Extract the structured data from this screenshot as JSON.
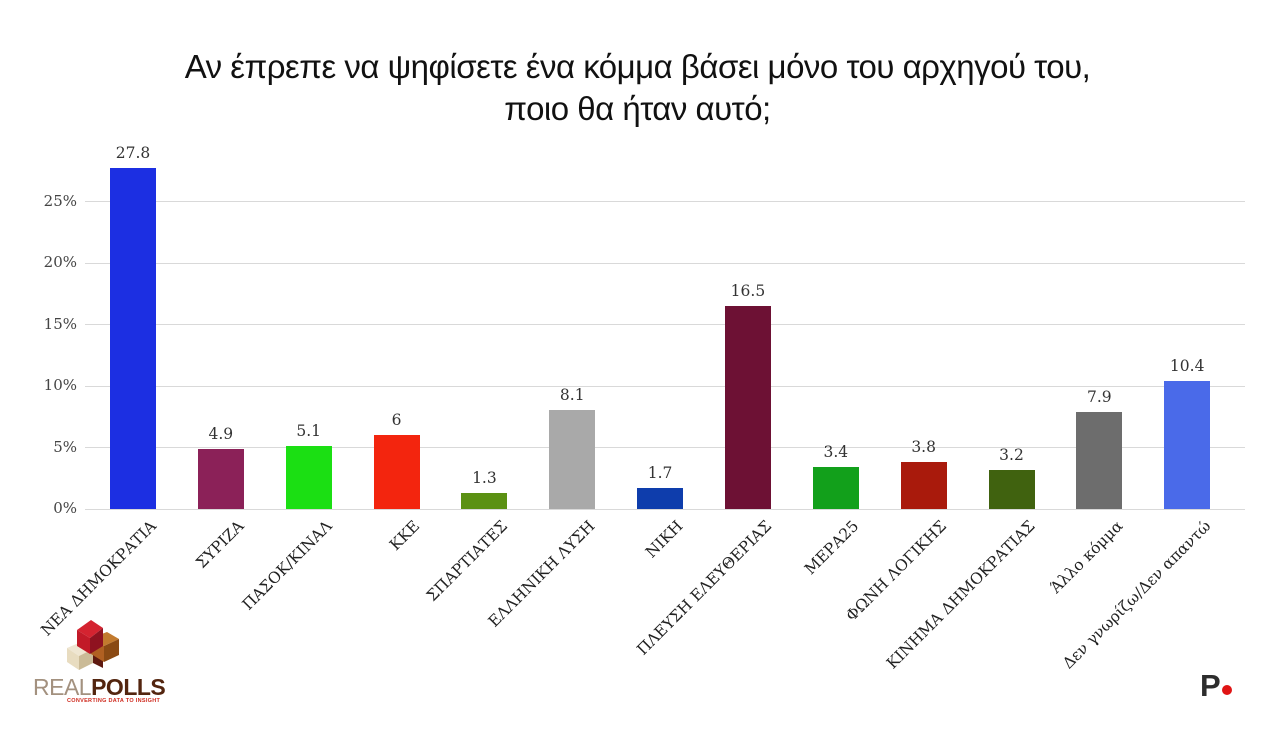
{
  "title": {
    "line1": "Αν έπρεπε να ψηφίσετε ένα κόμμα βάσει μόνο του αρχηγού του,",
    "line2": "ποιο θα ήταν αυτό;"
  },
  "chart_data": {
    "type": "bar",
    "title": "Αν έπρεπε να ψηφίσετε ένα κόμμα βάσει μόνο του αρχηγού του, ποιο θα ήταν αυτό;",
    "categories": [
      "ΝΕΑ ΔΗΜΟΚΡΑΤΙΑ",
      "ΣΥΡΙΖΑ",
      "ΠΑΣΟΚ/ΚΙΝΑΛ",
      "ΚΚΕ",
      "ΣΠΑΡΤΙΑΤΕΣ",
      "ΕΛΛΗΝΙΚΗ ΛΥΣΗ",
      "ΝΙΚΗ",
      "ΠΛΕΥΣΗ ΕΛΕΥΘΕΡΙΑΣ",
      "ΜΕΡΑ25",
      "ΦΩΝΗ ΛΟΓΙΚΗΣ",
      "ΚΙΝΗΜΑ ΔΗΜΟΚΡΑΤΙΑΣ",
      "Άλλο κόμμα",
      "Δεν γνωρίζω/Δεν απαντώ"
    ],
    "values": [
      27.8,
      4.9,
      5.1,
      6,
      1.3,
      8.1,
      1.7,
      16.5,
      3.4,
      3.8,
      3.2,
      7.9,
      10.4
    ],
    "value_labels": [
      "27.8",
      "4.9",
      "5.1",
      "6",
      "1.3",
      "8.1",
      "1.7",
      "16.5",
      "3.4",
      "3.8",
      "3.2",
      "7.9",
      "10.4"
    ],
    "bar_colors": [
      "#1c2fe2",
      "#8b2158",
      "#1bdf13",
      "#f3250e",
      "#5b9113",
      "#a9a9a9",
      "#0e3dac",
      "#6d1134",
      "#12a01b",
      "#a91a0c",
      "#40620f",
      "#6d6d6d",
      "#4a6ae9"
    ],
    "y_ticks": [
      0,
      5,
      10,
      15,
      20,
      25
    ],
    "y_tick_labels": [
      "0%",
      "5%",
      "10%",
      "15%",
      "20%",
      "25%"
    ],
    "ylim": [
      0,
      29.23
    ],
    "grid": true,
    "legend": false,
    "xlabel": "",
    "ylabel": ""
  },
  "branding": {
    "name_part1": "REAL",
    "name_part2": "POLLS",
    "tagline": "CONVERTING DATA TO INSIGHT",
    "corner_mark": "P",
    "colors": {
      "name_part1": "#a3917f",
      "name_part2": "#53250f",
      "tagline": "#cf2b1f",
      "corner_dot": "#e01414",
      "cube_red": "#d42330",
      "cube_red_dark": "#8f1220",
      "cube_brown": "#b06022",
      "cube_brown_dark": "#8a4a14",
      "cube_cream": "#e8dcc0",
      "cube_cream_dark": "#cbbb97",
      "cube_shadow": "#5e1a10"
    }
  }
}
